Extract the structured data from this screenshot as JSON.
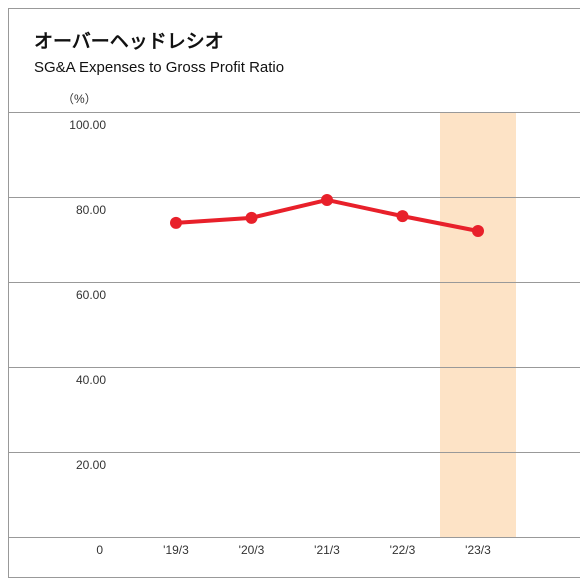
{
  "chart_data": {
    "type": "line",
    "title": "オーバーヘッドレシオ",
    "subtitle": "SG&A Expenses to Gross Profit Ratio",
    "y_unit": "（%）",
    "categories": [
      "'19/3",
      "'20/3",
      "'21/3",
      "'22/3",
      "'23/3"
    ],
    "series": [
      {
        "name": "SG&A Expenses to Gross Profit Ratio",
        "color": "#e8202a",
        "values": [
          73.9,
          75.1,
          79.3,
          75.5,
          72.0
        ]
      }
    ],
    "ylim": [
      0,
      100
    ],
    "yticks": [
      0,
      {
        "value": 20,
        "label": "20.00"
      },
      {
        "value": 40,
        "label": "40.00"
      },
      {
        "value": 60,
        "label": "60.00"
      },
      {
        "value": 80,
        "label": "80.00"
      },
      {
        "value": 100,
        "label": "100.00"
      }
    ],
    "grid": true,
    "highlight": "'23/3",
    "highlight_color": "#fde3c6"
  }
}
